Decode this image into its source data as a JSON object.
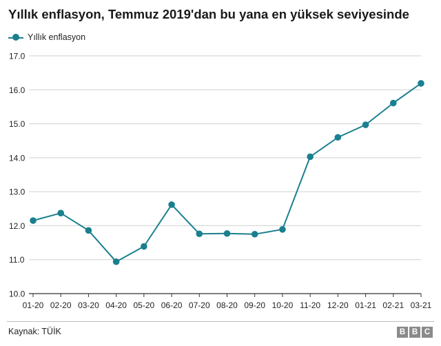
{
  "title": "Yıllık enflasyon, Temmuz 2019'dan bu yana en yüksek seviyesinde",
  "source": "Kaynak: TÜİK",
  "brand": [
    "B",
    "B",
    "C"
  ],
  "colors": {
    "series": "#1a7f8e",
    "grid": "#d0d0d0",
    "axis": "#333333"
  },
  "chart_data": {
    "type": "line",
    "title": "Yıllık enflasyon, Temmuz 2019'dan bu yana en yüksek seviyesinde",
    "xlabel": "",
    "ylabel": "",
    "ylim": [
      10.0,
      17.0
    ],
    "yticks": [
      "10.0",
      "11.0",
      "12.0",
      "13.0",
      "14.0",
      "15.0",
      "16.0",
      "17.0"
    ],
    "grid": true,
    "legend": "top-left",
    "categories": [
      "01-20",
      "02-20",
      "03-20",
      "04-20",
      "05-20",
      "06-20",
      "07-20",
      "08-20",
      "09-20",
      "10-20",
      "11-20",
      "12-20",
      "01-21",
      "02-21",
      "03-21"
    ],
    "series": [
      {
        "name": "Yıllık enflasyon",
        "values": [
          12.15,
          12.37,
          11.86,
          10.94,
          11.39,
          12.62,
          11.76,
          11.77,
          11.75,
          11.89,
          14.03,
          14.6,
          14.97,
          15.61,
          16.19
        ]
      }
    ]
  }
}
